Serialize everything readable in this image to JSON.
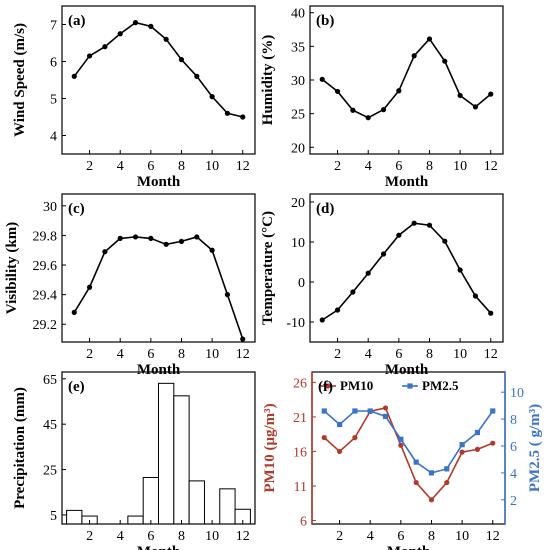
{
  "figure": {
    "colors": {
      "black": "#000000",
      "pm10": "#b23a2a",
      "pm25": "#3b73c8"
    }
  },
  "chart_data": [
    {
      "id": "a",
      "panel_label": "(a)",
      "type": "line",
      "x": [
        1,
        2,
        3,
        4,
        5,
        6,
        7,
        8,
        9,
        10,
        11,
        12
      ],
      "values": [
        5.6,
        6.15,
        6.4,
        6.75,
        7.05,
        6.95,
        6.6,
        6.05,
        5.6,
        5.05,
        4.6,
        4.5
      ],
      "xlabel": "Month",
      "ylabel": "Wind Speed (m/s)",
      "xlim": [
        0.2,
        12.8
      ],
      "ylim": [
        3.5,
        7.5
      ],
      "xticks": [
        2,
        4,
        6,
        8,
        10,
        12
      ],
      "xtick_labels": [
        "2",
        "4",
        "6",
        "8",
        "10",
        "12"
      ],
      "yticks": [
        4,
        5,
        6,
        7
      ],
      "ytick_labels": [
        "4",
        "5",
        "6",
        "7"
      ]
    },
    {
      "id": "b",
      "panel_label": "(b)",
      "type": "line",
      "x": [
        1,
        2,
        3,
        4,
        5,
        6,
        7,
        8,
        9,
        10,
        11,
        12
      ],
      "values": [
        30.1,
        28.3,
        25.5,
        24.4,
        25.6,
        28.4,
        33.6,
        36.1,
        32.8,
        27.7,
        26.0,
        27.9
      ],
      "xlabel": "Month",
      "ylabel": "Humidity (%)",
      "xlim": [
        0.2,
        12.8
      ],
      "ylim": [
        19,
        41
      ],
      "xticks": [
        2,
        4,
        6,
        8,
        10,
        12
      ],
      "xtick_labels": [
        "2",
        "4",
        "6",
        "8",
        "10",
        "12"
      ],
      "yticks": [
        20,
        25,
        30,
        35,
        40
      ],
      "ytick_labels": [
        "20",
        "25",
        "30",
        "35",
        "40"
      ]
    },
    {
      "id": "c",
      "panel_label": "(c)",
      "type": "line",
      "x": [
        1,
        2,
        3,
        4,
        5,
        6,
        7,
        8,
        9,
        10,
        11,
        12
      ],
      "values": [
        29.28,
        29.45,
        29.69,
        29.78,
        29.79,
        29.78,
        29.74,
        29.76,
        29.79,
        29.7,
        29.4,
        29.1
      ],
      "xlabel": "Month",
      "ylabel": "Visibility (km)",
      "xlim": [
        0.2,
        12.8
      ],
      "ylim": [
        29.08,
        30.08
      ],
      "xticks": [
        2,
        4,
        6,
        8,
        10,
        12
      ],
      "xtick_labels": [
        "2",
        "4",
        "6",
        "8",
        "10",
        "12"
      ],
      "yticks": [
        29.2,
        29.4,
        29.6,
        29.8,
        30.0
      ],
      "ytick_labels": [
        "29.2",
        "29.4",
        "29.6",
        "29.8",
        "30"
      ]
    },
    {
      "id": "d",
      "panel_label": "(d)",
      "type": "line",
      "x": [
        1,
        2,
        3,
        4,
        5,
        6,
        7,
        8,
        9,
        10,
        11,
        12
      ],
      "values": [
        -9.5,
        -7.0,
        -2.5,
        2.2,
        7.0,
        11.7,
        14.7,
        14.2,
        10.2,
        3.0,
        -3.5,
        -7.8
      ],
      "xlabel": "Month",
      "ylabel": "Temperature (°C)",
      "xlim": [
        0.2,
        12.8
      ],
      "ylim": [
        -15,
        22
      ],
      "xticks": [
        2,
        4,
        6,
        8,
        10,
        12
      ],
      "xtick_labels": [
        "2",
        "4",
        "6",
        "8",
        "10",
        "12"
      ],
      "yticks": [
        -10,
        0,
        10,
        20
      ],
      "ytick_labels": [
        "-10",
        "0",
        "10",
        "20"
      ]
    },
    {
      "id": "e",
      "panel_label": "(e)",
      "type": "bar",
      "x": [
        1,
        2,
        3,
        4,
        5,
        6,
        7,
        8,
        9,
        10,
        11,
        12
      ],
      "values": [
        7,
        4.5,
        0,
        1,
        4.5,
        21.5,
        63,
        57.5,
        20,
        0.5,
        16.5,
        7.5
      ],
      "xlabel": "Month",
      "ylabel": "Precipitation (mm)",
      "xlim": [
        0.2,
        12.8
      ],
      "ylim": [
        1,
        68
      ],
      "xticks": [
        2,
        4,
        6,
        8,
        10,
        12
      ],
      "xtick_labels": [
        "2",
        "4",
        "6",
        "8",
        "10",
        "12"
      ],
      "yticks": [
        5,
        25,
        45,
        65
      ],
      "ytick_labels": [
        "5",
        "25",
        "45",
        "65"
      ]
    },
    {
      "id": "f",
      "panel_label": "(f)",
      "type": "line",
      "x": [
        1,
        2,
        3,
        4,
        5,
        6,
        7,
        8,
        9,
        10,
        11,
        12
      ],
      "series": [
        {
          "name": "PM10",
          "axis": "left",
          "values": [
            18.0,
            16.0,
            18.0,
            21.8,
            22.3,
            16.9,
            11.5,
            9.0,
            11.5,
            15.9,
            16.3,
            17.2
          ]
        },
        {
          "name": "PM2.5",
          "axis": "right",
          "values": [
            8.6,
            7.6,
            8.6,
            8.6,
            8.2,
            6.5,
            4.8,
            4.0,
            4.3,
            6.1,
            7.0,
            8.6
          ]
        }
      ],
      "xlabel": "Month",
      "ylabel": "PM10 (μg/m³)",
      "ylabel2": "PM2.5 ( g/m³)",
      "legend_position": "top",
      "xlim": [
        0.2,
        12.8
      ],
      "ylim": [
        5.5,
        27.5
      ],
      "ylim2": [
        0.2,
        11.5
      ],
      "xticks": [
        2,
        4,
        6,
        8,
        10,
        12
      ],
      "xtick_labels": [
        "2",
        "4",
        "6",
        "8",
        "10",
        "12"
      ],
      "yticks": [
        6,
        11,
        16,
        21,
        26
      ],
      "ytick_labels": [
        "6",
        "11",
        "16",
        "21",
        "26"
      ],
      "yticks2": [
        2,
        4,
        6,
        8,
        10
      ],
      "ytick_labels2": [
        "2",
        "4",
        "6",
        "8",
        "10"
      ]
    }
  ]
}
